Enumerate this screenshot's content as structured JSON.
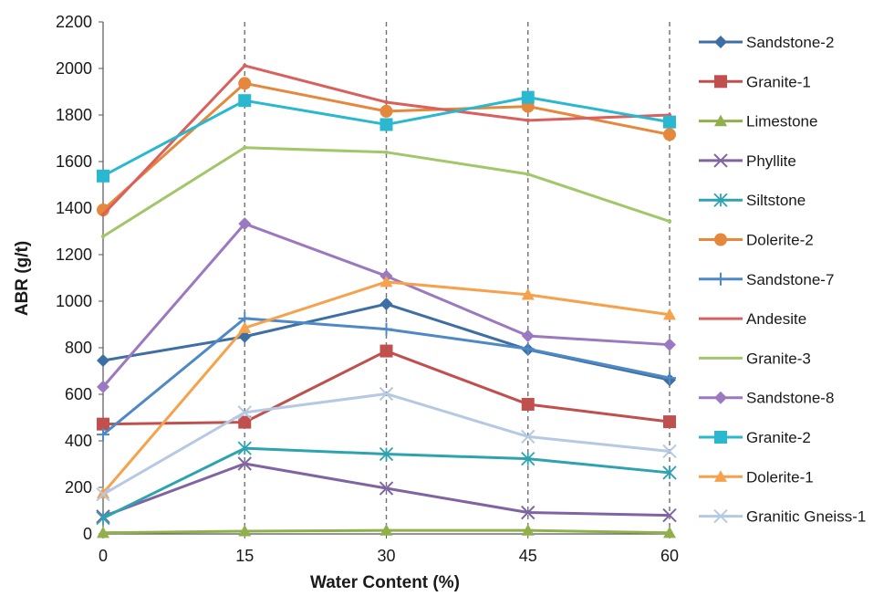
{
  "chart_data": {
    "type": "line",
    "title": "",
    "xlabel": "Water Content (%)",
    "ylabel": "ABR (g/t)",
    "x": [
      0,
      15,
      30,
      45,
      60
    ],
    "xticks": [
      "0",
      "15",
      "30",
      "45",
      "60"
    ],
    "yticks": [
      "0",
      "200",
      "400",
      "600",
      "800",
      "1000",
      "1200",
      "1400",
      "1600",
      "1800",
      "2000",
      "2200"
    ],
    "xlim": [
      0,
      60
    ],
    "ylim": [
      0,
      2200
    ],
    "grid": "vertical dashed lines at x ticks",
    "legend_position": "right",
    "series": [
      {
        "name": "Sandstone-2",
        "color": "#3d6fa5",
        "marker": "diamond",
        "values": [
          745,
          848,
          988,
          792,
          662
        ]
      },
      {
        "name": "Granite-1",
        "color": "#c0504d",
        "marker": "square",
        "values": [
          472,
          480,
          786,
          557,
          482
        ]
      },
      {
        "name": "Limestone",
        "color": "#8fb04a",
        "marker": "triangle",
        "values": [
          5,
          12,
          15,
          15,
          5
        ]
      },
      {
        "name": "Phyllite",
        "color": "#8064a2",
        "marker": "x",
        "values": [
          75,
          302,
          196,
          92,
          80
        ]
      },
      {
        "name": "Siltstone",
        "color": "#2ea3b0",
        "marker": "asterisk",
        "values": [
          68,
          368,
          343,
          323,
          263
        ]
      },
      {
        "name": "Dolerite-2",
        "color": "#e5883c",
        "marker": "circle",
        "values": [
          1392,
          1936,
          1816,
          1837,
          1716
        ]
      },
      {
        "name": "Sandstone-7",
        "color": "#4e89c5",
        "marker": "plus",
        "values": [
          427,
          926,
          880,
          795,
          670
        ]
      },
      {
        "name": "Andesite",
        "color": "#d9605c",
        "marker": "none",
        "values": [
          1372,
          2012,
          1855,
          1777,
          1800
        ]
      },
      {
        "name": "Granite-3",
        "color": "#a2c76a",
        "marker": "none",
        "values": [
          1278,
          1660,
          1640,
          1546,
          1343
        ]
      },
      {
        "name": "Sandstone-8",
        "color": "#9b79c0",
        "marker": "diamond",
        "values": [
          632,
          1333,
          1108,
          851,
          813
        ]
      },
      {
        "name": "Granite-2",
        "color": "#29b8d0",
        "marker": "square",
        "values": [
          1538,
          1862,
          1759,
          1876,
          1770
        ]
      },
      {
        "name": "Dolerite-1",
        "color": "#f7a14c",
        "marker": "triangle",
        "values": [
          175,
          885,
          1083,
          1028,
          942
        ]
      },
      {
        "name": "Granitic Gneiss-1",
        "color": "#b6c9e2",
        "marker": "x",
        "values": [
          170,
          522,
          602,
          418,
          355
        ]
      }
    ]
  }
}
